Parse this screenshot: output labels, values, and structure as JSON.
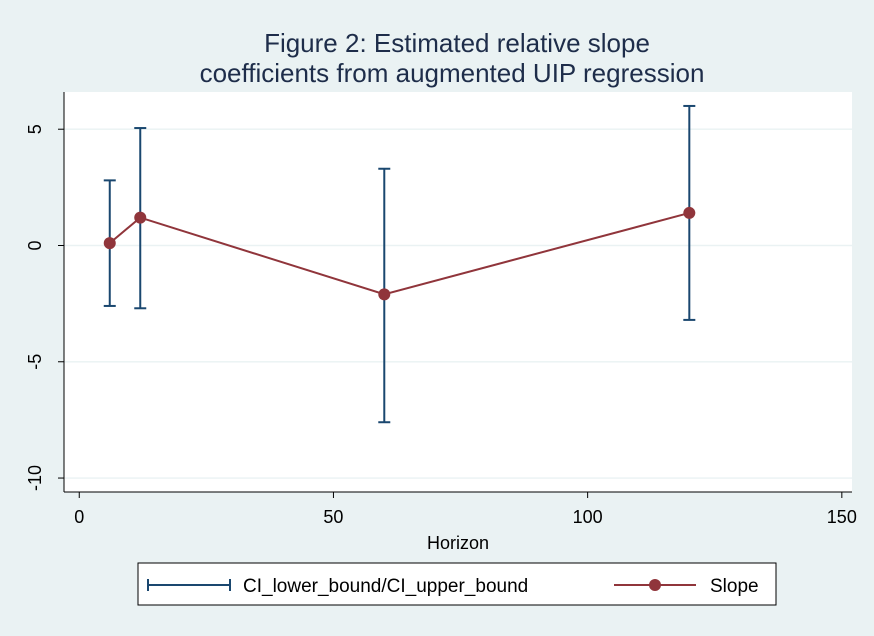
{
  "chart_data": {
    "type": "line",
    "title": [
      "Figure 2: Estimated relative slope",
      "coefficients from augmented UIP regression"
    ],
    "xlabel": "Horizon",
    "ylabel": "",
    "xlim": [
      -3,
      152
    ],
    "ylim": [
      -10.6,
      6.6
    ],
    "xticks": [
      0,
      50,
      100,
      150
    ],
    "xtick_labels": [
      "0",
      "50",
      "100",
      "150"
    ],
    "yticks": [
      5,
      0,
      -5,
      -10
    ],
    "ytick_labels": [
      "5",
      "0",
      "-5",
      "-10"
    ],
    "grid": true,
    "legend_position": "bottom",
    "x": [
      6,
      12,
      60,
      120
    ],
    "series": [
      {
        "name": "CI_lower_bound/CI_upper_bound",
        "kind": "rcap",
        "color": "#1a476f",
        "lower": [
          -2.6,
          -2.7,
          -7.6,
          -3.2
        ],
        "upper": [
          2.8,
          5.05,
          3.3,
          6.0
        ]
      },
      {
        "name": "Slope",
        "kind": "connected",
        "color": "#90353b",
        "values": [
          0.1,
          1.2,
          -2.1,
          1.4
        ]
      }
    ]
  }
}
